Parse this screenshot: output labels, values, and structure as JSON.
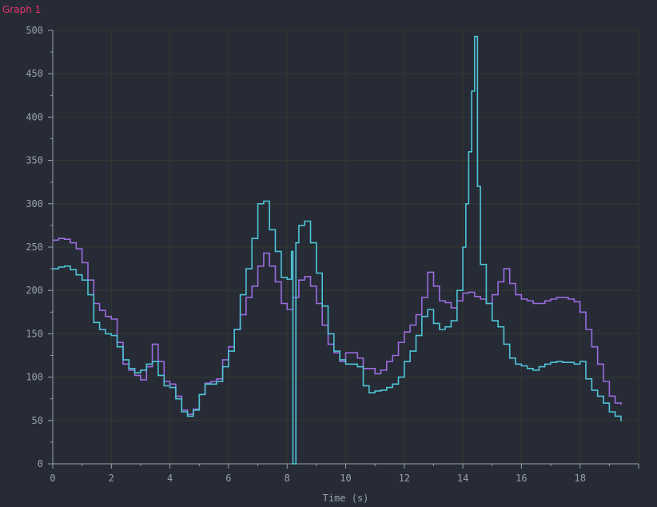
{
  "header": {
    "title": "Graph 1"
  },
  "colors": {
    "background": "#262b35",
    "grid": "#343a30",
    "axis": "#9aa0aa",
    "title": "#e8336c"
  },
  "chart_data": {
    "type": "line",
    "title": "",
    "xlabel": "Time (s)",
    "ylabel": "",
    "xlim": [
      0,
      20
    ],
    "ylim": [
      0,
      500
    ],
    "xticks": [
      0,
      2,
      4,
      6,
      8,
      10,
      12,
      14,
      16,
      18
    ],
    "yticks": [
      0,
      50,
      100,
      150,
      200,
      250,
      300,
      350,
      400,
      450,
      500
    ],
    "grid": true,
    "legend": "none",
    "step": true,
    "series": [
      {
        "color": "#9b6be0",
        "points": [
          [
            0,
            258
          ],
          [
            0.2,
            260
          ],
          [
            0.4,
            259
          ],
          [
            0.6,
            255
          ],
          [
            0.8,
            248
          ],
          [
            1.0,
            232
          ],
          [
            1.2,
            212
          ],
          [
            1.4,
            185
          ],
          [
            1.6,
            177
          ],
          [
            1.8,
            170
          ],
          [
            2.0,
            167
          ],
          [
            2.2,
            140
          ],
          [
            2.4,
            115
          ],
          [
            2.6,
            108
          ],
          [
            2.8,
            102
          ],
          [
            3.0,
            97
          ],
          [
            3.2,
            112
          ],
          [
            3.4,
            138
          ],
          [
            3.6,
            118
          ],
          [
            3.8,
            95
          ],
          [
            4.0,
            92
          ],
          [
            4.2,
            78
          ],
          [
            4.4,
            62
          ],
          [
            4.6,
            57
          ],
          [
            4.8,
            63
          ],
          [
            5.0,
            80
          ],
          [
            5.2,
            93
          ],
          [
            5.4,
            95
          ],
          [
            5.6,
            98
          ],
          [
            5.8,
            120
          ],
          [
            6.0,
            135
          ],
          [
            6.2,
            155
          ],
          [
            6.4,
            172
          ],
          [
            6.6,
            192
          ],
          [
            6.8,
            205
          ],
          [
            7.0,
            228
          ],
          [
            7.2,
            243
          ],
          [
            7.4,
            228
          ],
          [
            7.6,
            210
          ],
          [
            7.8,
            185
          ],
          [
            8.0,
            178
          ],
          [
            8.2,
            192
          ],
          [
            8.4,
            212
          ],
          [
            8.6,
            216
          ],
          [
            8.8,
            205
          ],
          [
            9.0,
            185
          ],
          [
            9.2,
            160
          ],
          [
            9.4,
            138
          ],
          [
            9.6,
            128
          ],
          [
            9.8,
            118
          ],
          [
            10.0,
            128
          ],
          [
            10.2,
            128
          ],
          [
            10.4,
            122
          ],
          [
            10.6,
            110
          ],
          [
            10.8,
            110
          ],
          [
            11.0,
            104
          ],
          [
            11.2,
            108
          ],
          [
            11.4,
            118
          ],
          [
            11.6,
            125
          ],
          [
            11.8,
            140
          ],
          [
            12.0,
            152
          ],
          [
            12.2,
            160
          ],
          [
            12.4,
            172
          ],
          [
            12.6,
            192
          ],
          [
            12.8,
            221
          ],
          [
            13.0,
            205
          ],
          [
            13.2,
            188
          ],
          [
            13.4,
            186
          ],
          [
            13.6,
            180
          ],
          [
            13.8,
            188
          ],
          [
            14.0,
            197
          ],
          [
            14.2,
            198
          ],
          [
            14.4,
            193
          ],
          [
            14.6,
            190
          ],
          [
            14.8,
            185
          ],
          [
            15.0,
            195
          ],
          [
            15.2,
            210
          ],
          [
            15.4,
            225
          ],
          [
            15.6,
            208
          ],
          [
            15.8,
            195
          ],
          [
            16.0,
            190
          ],
          [
            16.2,
            188
          ],
          [
            16.4,
            185
          ],
          [
            16.6,
            185
          ],
          [
            16.8,
            188
          ],
          [
            17.0,
            190
          ],
          [
            17.2,
            192
          ],
          [
            17.4,
            192
          ],
          [
            17.6,
            190
          ],
          [
            17.8,
            187
          ],
          [
            18.0,
            175
          ],
          [
            18.2,
            155
          ],
          [
            18.4,
            135
          ],
          [
            18.6,
            115
          ],
          [
            18.8,
            95
          ],
          [
            19.0,
            78
          ],
          [
            19.2,
            70
          ],
          [
            19.4,
            68
          ]
        ]
      },
      {
        "color": "#4ec4d6",
        "points": [
          [
            0,
            225
          ],
          [
            0.2,
            227
          ],
          [
            0.4,
            228
          ],
          [
            0.6,
            224
          ],
          [
            0.8,
            218
          ],
          [
            1.0,
            212
          ],
          [
            1.2,
            195
          ],
          [
            1.4,
            163
          ],
          [
            1.6,
            155
          ],
          [
            1.8,
            150
          ],
          [
            2.0,
            148
          ],
          [
            2.2,
            135
          ],
          [
            2.4,
            120
          ],
          [
            2.6,
            110
          ],
          [
            2.8,
            105
          ],
          [
            3.0,
            108
          ],
          [
            3.2,
            115
          ],
          [
            3.4,
            118
          ],
          [
            3.6,
            102
          ],
          [
            3.8,
            90
          ],
          [
            4.0,
            88
          ],
          [
            4.2,
            75
          ],
          [
            4.4,
            60
          ],
          [
            4.6,
            55
          ],
          [
            4.8,
            62
          ],
          [
            5.0,
            80
          ],
          [
            5.2,
            92
          ],
          [
            5.4,
            92
          ],
          [
            5.6,
            95
          ],
          [
            5.8,
            112
          ],
          [
            6.0,
            130
          ],
          [
            6.2,
            155
          ],
          [
            6.4,
            195
          ],
          [
            6.6,
            225
          ],
          [
            6.8,
            260
          ],
          [
            7.0,
            300
          ],
          [
            7.2,
            303
          ],
          [
            7.4,
            270
          ],
          [
            7.6,
            245
          ],
          [
            7.8,
            215
          ],
          [
            8.0,
            213
          ],
          [
            8.15,
            245
          ],
          [
            8.2,
            0
          ],
          [
            8.25,
            0
          ],
          [
            8.3,
            255
          ],
          [
            8.4,
            275
          ],
          [
            8.6,
            280
          ],
          [
            8.8,
            255
          ],
          [
            9.0,
            220
          ],
          [
            9.2,
            182
          ],
          [
            9.4,
            150
          ],
          [
            9.6,
            130
          ],
          [
            9.8,
            120
          ],
          [
            10.0,
            115
          ],
          [
            10.2,
            115
          ],
          [
            10.4,
            112
          ],
          [
            10.6,
            90
          ],
          [
            10.8,
            82
          ],
          [
            11.0,
            84
          ],
          [
            11.2,
            85
          ],
          [
            11.4,
            88
          ],
          [
            11.6,
            92
          ],
          [
            11.8,
            100
          ],
          [
            12.0,
            118
          ],
          [
            12.2,
            130
          ],
          [
            12.4,
            148
          ],
          [
            12.6,
            170
          ],
          [
            12.8,
            178
          ],
          [
            13.0,
            162
          ],
          [
            13.2,
            155
          ],
          [
            13.4,
            158
          ],
          [
            13.6,
            165
          ],
          [
            13.8,
            200
          ],
          [
            14.0,
            250
          ],
          [
            14.1,
            300
          ],
          [
            14.2,
            360
          ],
          [
            14.3,
            430
          ],
          [
            14.4,
            493
          ],
          [
            14.5,
            320
          ],
          [
            14.6,
            230
          ],
          [
            14.8,
            185
          ],
          [
            15.0,
            165
          ],
          [
            15.2,
            158
          ],
          [
            15.4,
            138
          ],
          [
            15.6,
            122
          ],
          [
            15.8,
            115
          ],
          [
            16.0,
            113
          ],
          [
            16.2,
            110
          ],
          [
            16.4,
            108
          ],
          [
            16.6,
            112
          ],
          [
            16.8,
            115
          ],
          [
            17.0,
            117
          ],
          [
            17.2,
            118
          ],
          [
            17.4,
            117
          ],
          [
            17.6,
            117
          ],
          [
            17.8,
            115
          ],
          [
            18.0,
            118
          ],
          [
            18.2,
            98
          ],
          [
            18.4,
            85
          ],
          [
            18.6,
            78
          ],
          [
            18.8,
            70
          ],
          [
            19.0,
            60
          ],
          [
            19.2,
            55
          ],
          [
            19.4,
            49
          ]
        ]
      }
    ]
  }
}
